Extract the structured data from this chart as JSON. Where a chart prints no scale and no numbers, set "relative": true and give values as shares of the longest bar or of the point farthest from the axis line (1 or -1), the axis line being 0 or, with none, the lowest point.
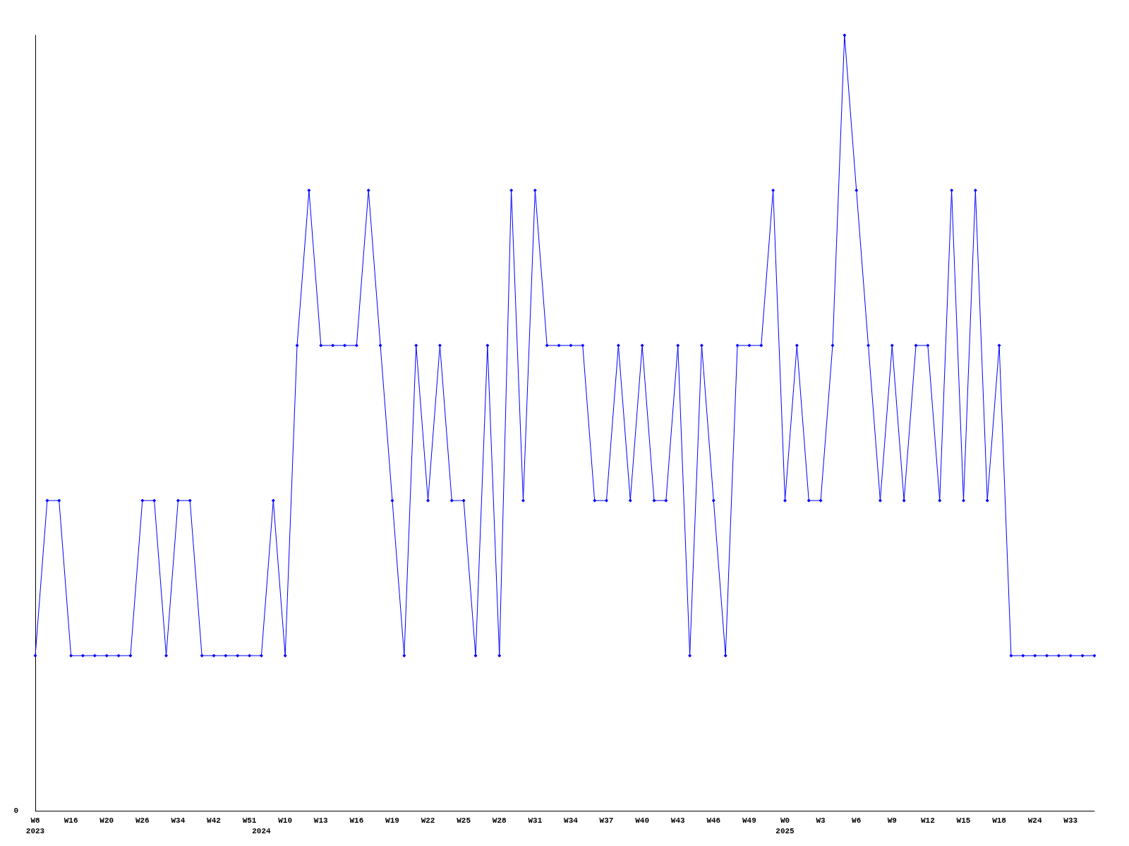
{
  "chart_data": {
    "type": "line",
    "relative": true,
    "marker": "diamond",
    "categories": [
      "W8\n2023",
      null,
      null,
      "W16",
      null,
      null,
      "W20",
      null,
      null,
      "W26",
      null,
      null,
      "W34",
      null,
      null,
      "W42",
      null,
      null,
      "W51",
      "\n2024",
      null,
      "W10",
      null,
      null,
      "W13",
      null,
      null,
      "W16",
      null,
      null,
      "W19",
      null,
      null,
      "W22",
      null,
      null,
      "W25",
      null,
      null,
      "W28",
      null,
      null,
      "W31",
      null,
      null,
      "W34",
      null,
      null,
      "W37",
      null,
      null,
      "W40",
      null,
      null,
      "W43",
      null,
      null,
      "W46",
      null,
      null,
      "W49",
      null,
      null,
      "W0\n2025",
      null,
      null,
      "W3",
      null,
      null,
      "W6",
      null,
      null,
      "W9",
      null,
      null,
      "W12",
      null,
      null,
      "W15",
      null,
      null,
      "W18",
      null,
      null,
      "W24",
      null,
      null,
      "W33",
      null,
      null
    ],
    "annotations": [
      "0"
    ],
    "series": [
      {
        "color": "#0000ff",
        "values": [
          0.2,
          0.4,
          0.4,
          0.2,
          0.2,
          0.2,
          0.2,
          0.2,
          0.2,
          0.4,
          0.4,
          0.2,
          0.4,
          0.4,
          0.2,
          0.2,
          0.2,
          0.2,
          0.2,
          0.2,
          0.4,
          0.2,
          0.6,
          0.8,
          0.6,
          0.6,
          0.6,
          0.6,
          0.8,
          0.6,
          0.4,
          0.2,
          0.6,
          0.4,
          0.6,
          0.4,
          0.4,
          0.2,
          0.6,
          0.2,
          0.8,
          0.4,
          0.8,
          0.6,
          0.6,
          0.6,
          0.6,
          0.4,
          0.4,
          0.6,
          0.4,
          0.6,
          0.4,
          0.4,
          0.6,
          0.2,
          0.6,
          0.4,
          0.2,
          0.6,
          0.6,
          0.6,
          0.8,
          0.4,
          0.6,
          0.4,
          0.4,
          0.6,
          1,
          0.8,
          0.6,
          0.4,
          0.6,
          0.4,
          0.6,
          0.6,
          0.4,
          0.8,
          0.4,
          0.8,
          0.4,
          0.6,
          0.2,
          0.2,
          0.2,
          0.2,
          0.2,
          0.2,
          0.2,
          0.2
        ]
      }
    ]
  }
}
